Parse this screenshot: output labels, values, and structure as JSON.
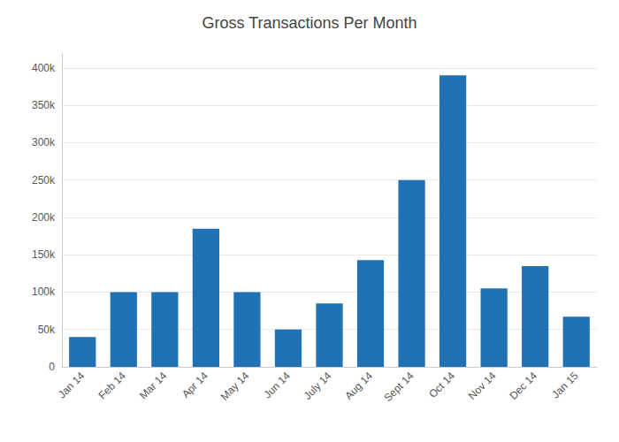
{
  "chart_data": {
    "type": "bar",
    "title": "Gross Transactions Per Month",
    "categories": [
      "Jan 14",
      "Feb 14",
      "Mar 14",
      "Apr 14",
      "May 14",
      "Jun 14",
      "July 14",
      "Aug 14",
      "Sept 14",
      "Oct 14",
      "Nov 14",
      "Dec 14",
      "Jan 15"
    ],
    "values": [
      40000,
      100000,
      100000,
      185000,
      100000,
      50000,
      85000,
      143000,
      250000,
      390000,
      105000,
      135000,
      67000
    ],
    "color": "#2171b5",
    "ylim": [
      0,
      420000
    ],
    "yticks": [
      0,
      {
        "value": 50000,
        "label": "50k"
      },
      {
        "value": 100000,
        "label": "100k"
      },
      {
        "value": 150000,
        "label": "150k"
      },
      {
        "value": 200000,
        "label": "200k"
      },
      {
        "value": 250000,
        "label": "250k"
      },
      {
        "value": 300000,
        "label": "300k"
      },
      {
        "value": 350000,
        "label": "350k"
      },
      {
        "value": 400000,
        "label": "400k"
      }
    ],
    "grid": true
  }
}
